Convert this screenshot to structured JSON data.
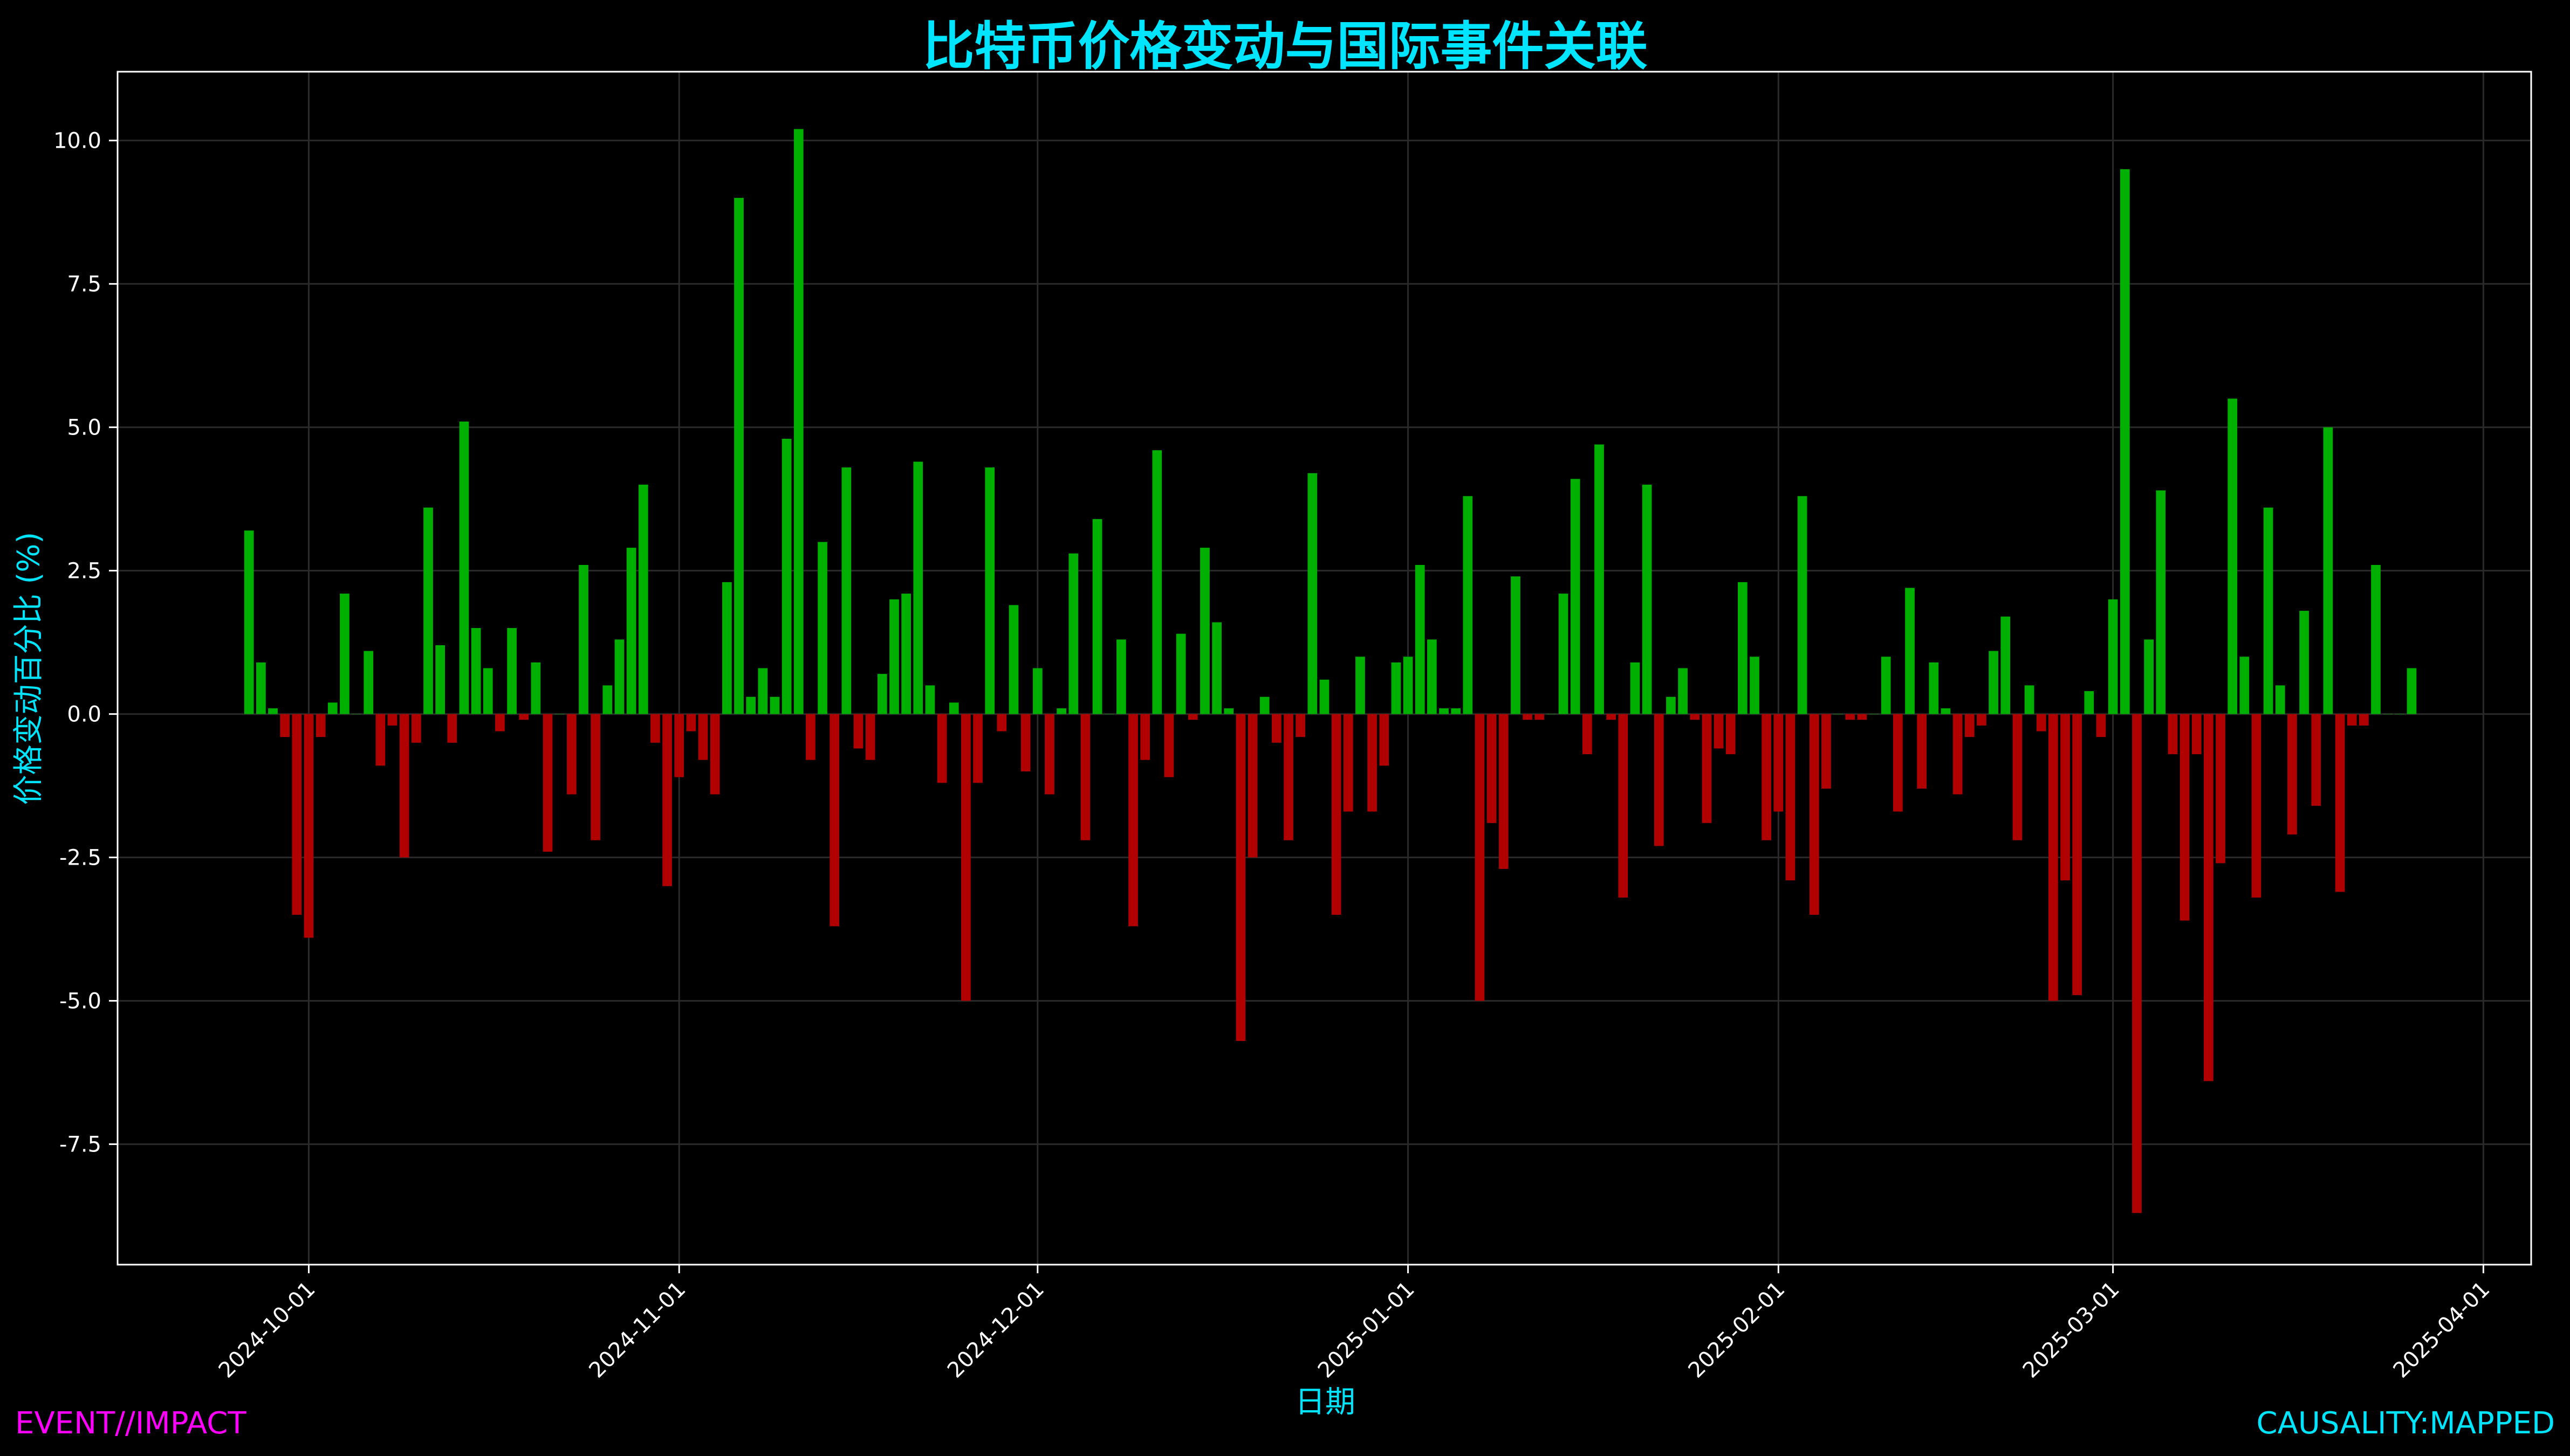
{
  "footer": {
    "left_tag": "EVENT//IMPACT",
    "right_tag": "CAUSALITY:MAPPED"
  },
  "colors": {
    "positive": "#00b000",
    "negative": "#b00000",
    "accent": "#00e5ff",
    "tag": "#ff00ff",
    "axis": "#ffffff",
    "grid": "#2a2a2a"
  },
  "chart_data": {
    "type": "bar",
    "title": "比特币价格变动与国际事件关联",
    "xlabel": "日期",
    "ylabel": "价格变动百分比 (%)",
    "ylim": [
      -9.6,
      11.2
    ],
    "xlim": [
      "2024-09-15",
      "2025-04-05"
    ],
    "y_ticks": [
      -7.5,
      -5.0,
      -2.5,
      0.0,
      2.5,
      5.0,
      7.5,
      10.0
    ],
    "y_tick_labels": [
      "-7.5",
      "-5.0",
      "-2.5",
      "0.0",
      "2.5",
      "5.0",
      "7.5",
      "10.0"
    ],
    "x_ticks": [
      "2024-10-01",
      "2024-11-01",
      "2024-12-01",
      "2025-01-01",
      "2025-02-01",
      "2025-03-01",
      "2025-04-01"
    ],
    "grid": true,
    "start_date": "2024-09-26",
    "values": [
      3.2,
      0.9,
      0.1,
      -0.4,
      -3.5,
      -3.9,
      -0.4,
      0.2,
      2.1,
      0.0,
      1.1,
      -0.9,
      -0.2,
      -2.5,
      -0.5,
      3.6,
      1.2,
      -0.5,
      5.1,
      1.5,
      0.8,
      -0.3,
      1.5,
      -0.1,
      0.9,
      -2.4,
      0.0,
      -1.4,
      2.6,
      -2.2,
      0.5,
      1.3,
      2.9,
      4.0,
      -0.5,
      -3.0,
      -1.1,
      -0.3,
      -0.8,
      -1.4,
      2.3,
      9.0,
      0.3,
      0.8,
      0.3,
      4.8,
      10.2,
      -0.8,
      3.0,
      -3.7,
      4.3,
      -0.6,
      -0.8,
      0.7,
      2.0,
      2.1,
      4.4,
      0.5,
      -1.2,
      0.2,
      -5.0,
      -1.2,
      4.3,
      -0.3,
      1.9,
      -1.0,
      0.8,
      -1.4,
      0.1,
      2.8,
      -2.2,
      3.4,
      0.0,
      1.3,
      -3.7,
      -0.8,
      4.6,
      -1.1,
      1.4,
      -0.1,
      2.9,
      1.6,
      0.1,
      -5.7,
      -2.5,
      0.3,
      -0.5,
      -2.2,
      -0.4,
      4.2,
      0.6,
      -3.5,
      -1.7,
      1.0,
      -1.7,
      -0.9,
      0.9,
      1.0,
      2.6,
      1.3,
      0.1,
      0.1,
      3.8,
      -5.0,
      -1.9,
      -2.7,
      2.4,
      -0.1,
      -0.1,
      0.0,
      2.1,
      4.1,
      -0.7,
      4.7,
      -0.1,
      -3.2,
      0.9,
      4.0,
      -2.3,
      0.3,
      0.8,
      -0.1,
      -1.9,
      -0.6,
      -0.7,
      2.3,
      1.0,
      -2.2,
      -1.7,
      -2.9,
      3.8,
      -3.5,
      -1.3,
      0.0,
      -0.1,
      -0.1,
      0.0,
      1.0,
      -1.7,
      2.2,
      -1.3,
      0.9,
      0.1,
      -1.4,
      -0.4,
      -0.2,
      1.1,
      1.7,
      -2.2,
      0.5,
      -0.3,
      -5.0,
      -2.9,
      -4.9,
      0.4,
      -0.4,
      2.0,
      9.5,
      -8.7,
      1.3,
      3.9,
      -0.7,
      -3.6,
      -0.7,
      -6.4,
      -2.6,
      5.5,
      1.0,
      -3.2,
      3.6,
      0.5,
      -2.1,
      1.8,
      -1.6,
      5.0,
      -3.1,
      -0.2,
      -0.2,
      2.6,
      0.0,
      0.0,
      0.8
    ]
  }
}
